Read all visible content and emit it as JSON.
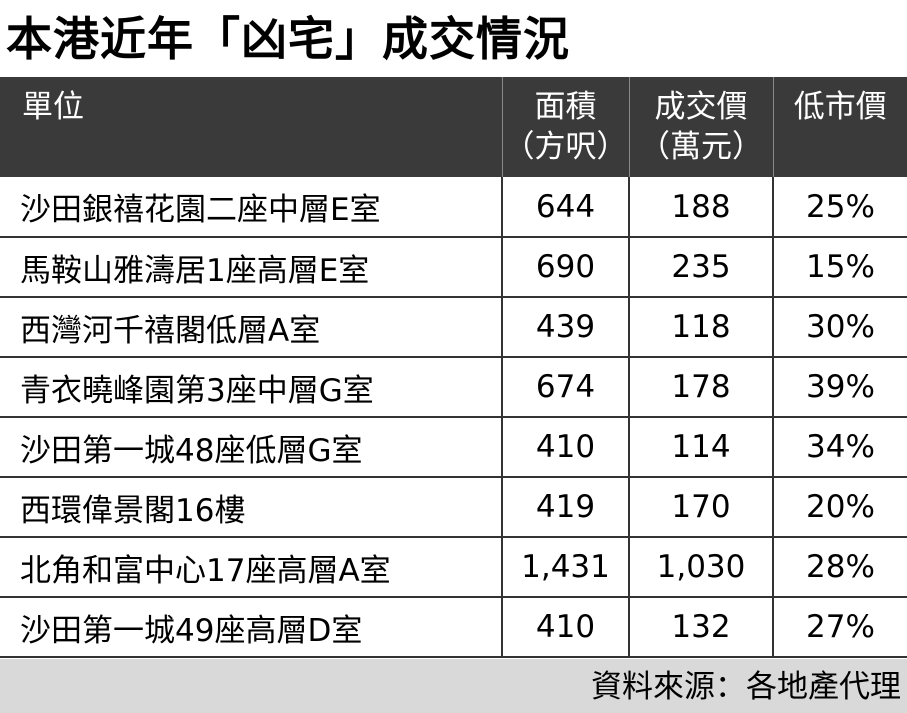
{
  "title": "本港近年「凶宅」成交情況",
  "table": {
    "headers": [
      {
        "line1": "單位",
        "line2": ""
      },
      {
        "line1": "面積",
        "line2": "（方呎）"
      },
      {
        "line1": "成交價",
        "line2": "（萬元）"
      },
      {
        "line1": "低市價",
        "line2": ""
      }
    ],
    "rows": [
      {
        "unit": "沙田銀禧花園二座中層E室",
        "area": "644",
        "price": "188",
        "discount": "25%"
      },
      {
        "unit": "馬鞍山雅濤居1座高層E室",
        "area": "690",
        "price": "235",
        "discount": "15%"
      },
      {
        "unit": "西灣河千禧閣低層A室",
        "area": "439",
        "price": "118",
        "discount": "30%"
      },
      {
        "unit": "青衣曉峰園第3座中層G室",
        "area": "674",
        "price": "178",
        "discount": "39%"
      },
      {
        "unit": "沙田第一城48座低層G室",
        "area": "410",
        "price": "114",
        "discount": "34%"
      },
      {
        "unit": "西環偉景閣16樓",
        "area": "419",
        "price": "170",
        "discount": "20%"
      },
      {
        "unit": "北角和富中心17座高層A室",
        "area": "1,431",
        "price": "1,030",
        "discount": "28%"
      },
      {
        "unit": "沙田第一城49座高層D室",
        "area": "410",
        "price": "132",
        "discount": "27%"
      }
    ]
  },
  "source": "資料來源：各地產代理"
}
